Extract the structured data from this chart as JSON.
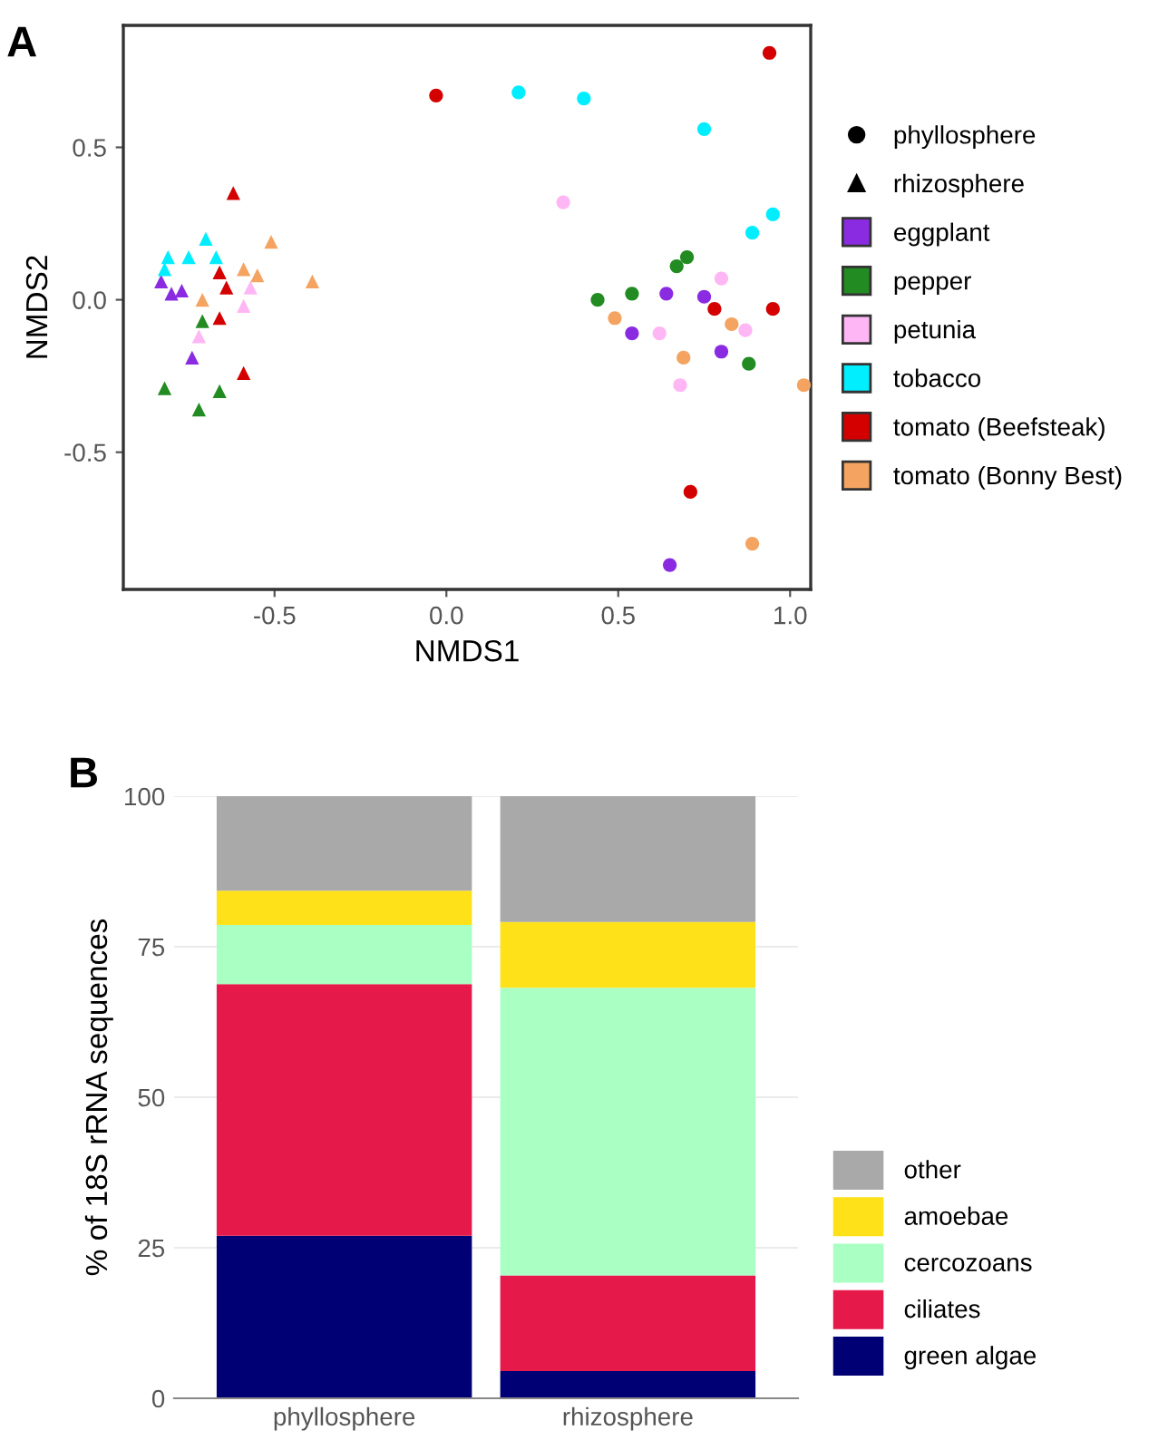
{
  "chart_data": [
    {
      "type": "scatter",
      "title": "A",
      "xlabel": "NMDS1",
      "ylabel": "NMDS2",
      "xlim": [
        -0.94,
        1.06
      ],
      "ylim": [
        -0.95,
        0.9
      ],
      "xticks": [
        {
          "value": -0.5,
          "label": "-0.5"
        },
        {
          "value": 0,
          "label": "0.0"
        },
        {
          "value": 0.5,
          "label": "0.5"
        },
        {
          "value": 1,
          "label": "1.0"
        }
      ],
      "yticks": [
        {
          "value": -0.5,
          "label": "-0.5"
        },
        {
          "value": 0,
          "label": "0.0"
        },
        {
          "value": 0.5,
          "label": "0.5"
        }
      ],
      "grid": false,
      "legend": "right",
      "series": [
        {
          "name": "phyllosphere",
          "color": "#000000",
          "marker": "circle"
        },
        {
          "name": "rhizosphere",
          "color": "#000000",
          "marker": "triangle"
        },
        {
          "name": "eggplant",
          "color": "#8a2be2",
          "marker": "circle",
          "x": [
            0.64,
            0.75,
            0.54,
            0.8,
            0.65
          ],
          "values": [
            0.02,
            0.01,
            -0.11,
            -0.17,
            -0.87
          ]
        },
        {
          "name": "pepper",
          "color": "#228b22",
          "marker": "circle",
          "x": [
            0.7,
            0.67,
            0.44,
            0.54,
            0.88
          ],
          "values": [
            0.14,
            0.11,
            0.0,
            0.02,
            -0.21
          ]
        },
        {
          "name": "petunia",
          "color": "#ffb6f5",
          "marker": "circle",
          "x": [
            0.34,
            0.8,
            0.87,
            0.62,
            0.68
          ],
          "values": [
            0.32,
            0.07,
            -0.1,
            -0.11,
            -0.28
          ]
        },
        {
          "name": "tobacco",
          "color": "#00eeff",
          "marker": "circle",
          "x": [
            0.21,
            0.4,
            0.75,
            0.95,
            0.89
          ],
          "values": [
            0.68,
            0.66,
            0.56,
            0.28,
            0.22
          ]
        },
        {
          "name": "tomato (Beefsteak)",
          "color": "#d40000",
          "marker": "circle",
          "x": [
            -0.03,
            0.94,
            0.78,
            0.95,
            0.71
          ],
          "values": [
            0.67,
            0.81,
            -0.03,
            -0.03,
            -0.63
          ]
        },
        {
          "name": "tomato (Bonny Best)",
          "color": "#f4a460",
          "marker": "circle",
          "x": [
            0.49,
            0.83,
            0.69,
            1.04,
            0.89
          ],
          "values": [
            -0.06,
            -0.08,
            -0.19,
            -0.28,
            -0.8
          ]
        },
        {
          "color": "#8a2be2",
          "marker": "triangle",
          "x": [
            -0.83,
            -0.8,
            -0.77,
            -0.74
          ],
          "values": [
            0.06,
            0.02,
            0.03,
            -0.19
          ]
        },
        {
          "color": "#228b22",
          "marker": "triangle",
          "x": [
            -0.71,
            -0.82,
            -0.66,
            -0.72
          ],
          "values": [
            -0.07,
            -0.29,
            -0.3,
            -0.36
          ]
        },
        {
          "color": "#ffb6f5",
          "marker": "triangle",
          "x": [
            -0.57,
            -0.59,
            -0.72
          ],
          "values": [
            0.04,
            -0.02,
            -0.12
          ]
        },
        {
          "color": "#00eeff",
          "marker": "triangle",
          "x": [
            -0.7,
            -0.81,
            -0.75,
            -0.67,
            -0.82
          ],
          "values": [
            0.2,
            0.14,
            0.14,
            0.14,
            0.1
          ]
        },
        {
          "color": "#d40000",
          "marker": "triangle",
          "x": [
            -0.62,
            -0.66,
            -0.64,
            -0.66,
            -0.59
          ],
          "values": [
            0.35,
            0.09,
            0.04,
            -0.06,
            -0.24
          ]
        },
        {
          "color": "#f4a460",
          "marker": "triangle",
          "x": [
            -0.51,
            -0.59,
            -0.55,
            -0.39,
            -0.71
          ],
          "values": [
            0.19,
            0.1,
            0.08,
            0.06,
            0.0
          ]
        }
      ]
    },
    {
      "type": "bar",
      "title": "B",
      "ylabel": "% of 18S rRNA sequences",
      "stacked": true,
      "ylim": [
        0,
        100
      ],
      "yticks": [
        0,
        25,
        50,
        75,
        100
      ],
      "grid": "y",
      "legend": "right",
      "categories": [
        "phyllosphere",
        "rhizosphere"
      ],
      "series": [
        {
          "name": "green algae",
          "color": "#000075",
          "values": [
            27.0,
            4.5
          ]
        },
        {
          "name": "ciliates",
          "color": "#e6194b",
          "values": [
            41.8,
            15.9
          ]
        },
        {
          "name": "cercozoans",
          "color": "#aaffc3",
          "values": [
            9.8,
            47.8
          ]
        },
        {
          "name": "amoebae",
          "color": "#ffe119",
          "values": [
            5.7,
            10.9
          ]
        },
        {
          "name": "other",
          "color": "#a9a9a9",
          "values": [
            15.7,
            20.9
          ]
        }
      ]
    }
  ]
}
